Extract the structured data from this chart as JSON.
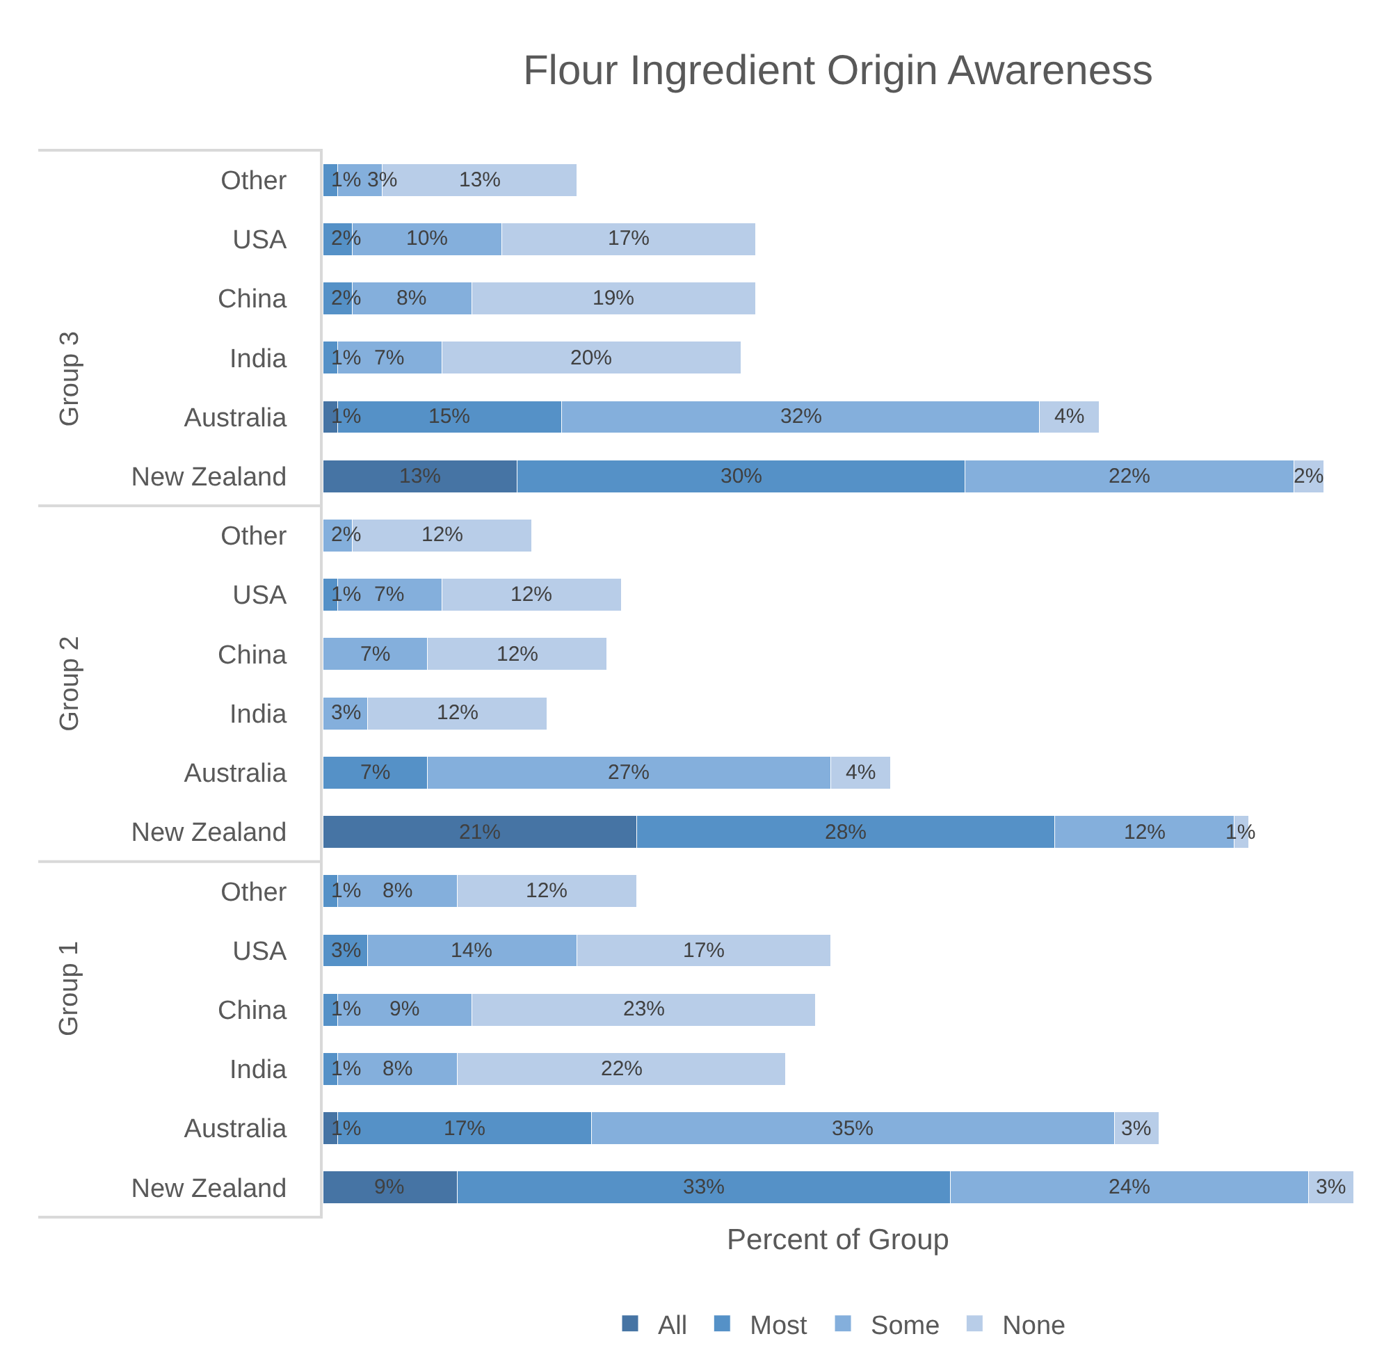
{
  "chart_data": {
    "type": "bar",
    "orientation": "horizontal",
    "stacked": true,
    "title": "Flour Ingredient Origin Awareness",
    "xlabel": "Percent of Group",
    "categories": [
      "Other",
      "USA",
      "China",
      "India",
      "Australia",
      "New Zealand",
      "Other",
      "USA",
      "China",
      "India",
      "Australia",
      "New Zealand",
      "Other",
      "USA",
      "China",
      "India",
      "Australia",
      "New Zealand"
    ],
    "annotations": [
      "Group 3",
      "Group 2",
      "Group 1"
    ],
    "series": [
      {
        "name": "All",
        "color": "#4674a4",
        "values": [
          null,
          null,
          null,
          null,
          1,
          13,
          null,
          null,
          null,
          null,
          null,
          21,
          null,
          null,
          null,
          null,
          1,
          9
        ],
        "value_labels": [
          null,
          null,
          null,
          null,
          "1%",
          "13%",
          null,
          null,
          null,
          null,
          null,
          "21%",
          null,
          null,
          null,
          null,
          "1%",
          "9%"
        ]
      },
      {
        "name": "Most",
        "color": "#5591c7",
        "values": [
          1,
          2,
          2,
          1,
          15,
          30,
          null,
          1,
          null,
          null,
          7,
          28,
          1,
          3,
          1,
          1,
          17,
          33
        ],
        "value_labels": [
          "1%",
          "2%",
          "2%",
          "1%",
          "15%",
          "30%",
          null,
          "1%",
          null,
          null,
          "7%",
          "28%",
          "1%",
          "3%",
          "1%",
          "1%",
          "17%",
          "33%"
        ]
      },
      {
        "name": "Some",
        "color": "#84afdc",
        "values": [
          3,
          10,
          8,
          7,
          32,
          22,
          2,
          7,
          7,
          3,
          27,
          12,
          8,
          14,
          9,
          8,
          35,
          24
        ],
        "value_labels": [
          "3%",
          "10%",
          "8%",
          "7%",
          "32%",
          "22%",
          "2%",
          "7%",
          "7%",
          "3%",
          "27%",
          "12%",
          "8%",
          "14%",
          "9%",
          "8%",
          "35%",
          "24%"
        ]
      },
      {
        "name": "None",
        "color": "#b8cde8",
        "values": [
          13,
          17,
          19,
          20,
          4,
          2,
          12,
          12,
          12,
          12,
          4,
          1,
          12,
          17,
          23,
          22,
          3,
          3
        ],
        "value_labels": [
          "13%",
          "17%",
          "19%",
          "20%",
          "4%",
          "2%",
          "12%",
          "12%",
          "12%",
          "12%",
          "4%",
          "1%",
          "12%",
          "17%",
          "23%",
          "22%",
          "3%",
          "3%"
        ]
      }
    ],
    "legend": "bottom",
    "grid": false,
    "tick_labels": "y"
  }
}
